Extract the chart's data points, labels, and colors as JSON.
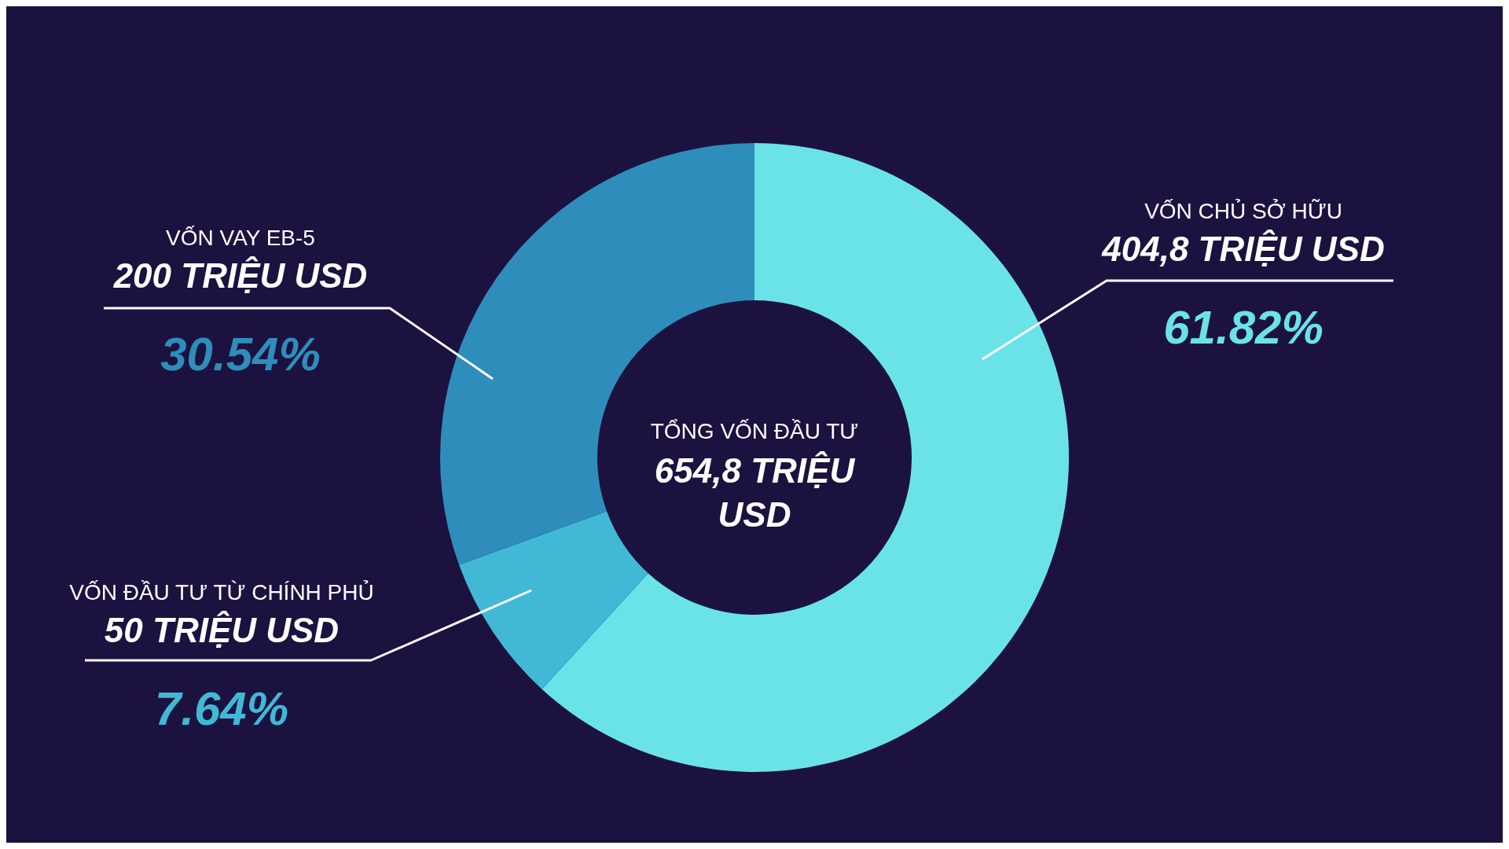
{
  "chart_data": {
    "type": "donut",
    "title": "TỔNG VỐN ĐẦU TƯ",
    "subtitle": "654,8 TRIỆU USD",
    "categories": [
      "VỐN CHỦ SỞ HỮU",
      "VỐN ĐẦU TƯ TỪ CHÍNH PHỦ",
      "VỐN VAY EB-5"
    ],
    "values": [
      404.8,
      50,
      200
    ],
    "colors": [
      "#6ae3e8",
      "#41b8d6",
      "#2e8dbb"
    ],
    "value_labels": [
      "404,8 TRIỆU USD",
      "50 TRIỆU USD",
      "200 TRIỆU USD"
    ],
    "annotations": [
      {
        "text": "61.82%",
        "x": "VỐN CHỦ SỞ HỮU"
      },
      {
        "text": "7.64%",
        "x": "VỐN ĐẦU TƯ TỪ CHÍNH PHỦ"
      },
      {
        "text": "30.54%",
        "x": "VỐN VAY EB-5"
      }
    ],
    "legend": false
  }
}
